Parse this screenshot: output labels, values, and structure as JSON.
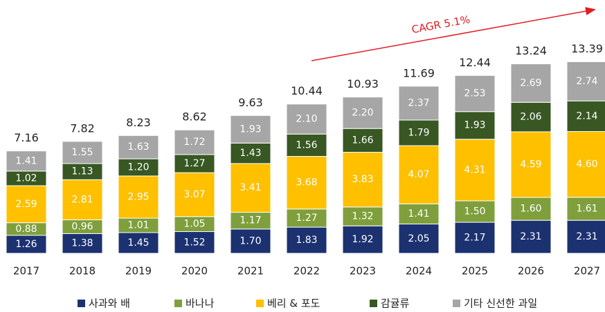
{
  "chart_data": {
    "type": "stacked_bar",
    "categories": [
      "2017",
      "2018",
      "2019",
      "2020",
      "2021",
      "2022",
      "2023",
      "2024",
      "2025",
      "2026",
      "2027"
    ],
    "series": [
      {
        "name": "사과와 배",
        "color": "#1c3170",
        "values": [
          1.26,
          1.38,
          1.45,
          1.52,
          1.7,
          1.83,
          1.92,
          2.05,
          2.17,
          2.31,
          2.31
        ],
        "value_labels": [
          "1.26",
          "1.38",
          "1.45",
          "1.52",
          "1.70",
          "1.83",
          "1.92",
          "2.05",
          "2.17",
          "2.31",
          "2.31"
        ]
      },
      {
        "name": "바나나",
        "color": "#7f9f3d",
        "values": [
          0.88,
          0.96,
          1.01,
          1.05,
          1.17,
          1.27,
          1.32,
          1.41,
          1.5,
          1.6,
          1.61
        ],
        "value_labels": [
          "0.88",
          "0.96",
          "1.01",
          "1.05",
          "1.17",
          "1.27",
          "1.32",
          "1.41",
          "1.50",
          "1.60",
          "1.61"
        ]
      },
      {
        "name": "베리 & 포도",
        "color": "#ffc000",
        "values": [
          2.59,
          2.81,
          2.95,
          3.07,
          3.41,
          3.68,
          3.83,
          4.07,
          4.31,
          4.59,
          4.6
        ],
        "value_labels": [
          "2.59",
          "2.81",
          "2.95",
          "3.07",
          "3.41",
          "3.68",
          "3.83",
          "4.07",
          "4.31",
          "4.59",
          "4.60"
        ]
      },
      {
        "name": "감귤류",
        "color": "#385723",
        "values": [
          1.02,
          1.13,
          1.2,
          1.27,
          1.43,
          1.56,
          1.66,
          1.79,
          1.93,
          2.06,
          2.14
        ],
        "value_labels": [
          "1.02",
          "1.13",
          "1.20",
          "1.27",
          "1.43",
          "1.56",
          "1.66",
          "1.79",
          "1.93",
          "2.06",
          "2.14"
        ]
      },
      {
        "name": "기타 신선한 과일",
        "color": "#a6a6a6",
        "values": [
          1.41,
          1.55,
          1.63,
          1.72,
          1.93,
          2.1,
          2.2,
          2.37,
          2.53,
          2.69,
          2.74
        ],
        "value_labels": [
          "1.41",
          "1.55",
          "1.63",
          "1.72",
          "1.93",
          "2.10",
          "2.20",
          "2.37",
          "2.53",
          "2.69",
          "2.74"
        ]
      }
    ],
    "totals": [
      7.16,
      7.82,
      8.23,
      8.62,
      9.63,
      10.44,
      10.93,
      11.69,
      12.44,
      13.24,
      13.39
    ],
    "annotation": "CAGR 5.1%",
    "ylim": [
      0,
      14
    ]
  }
}
